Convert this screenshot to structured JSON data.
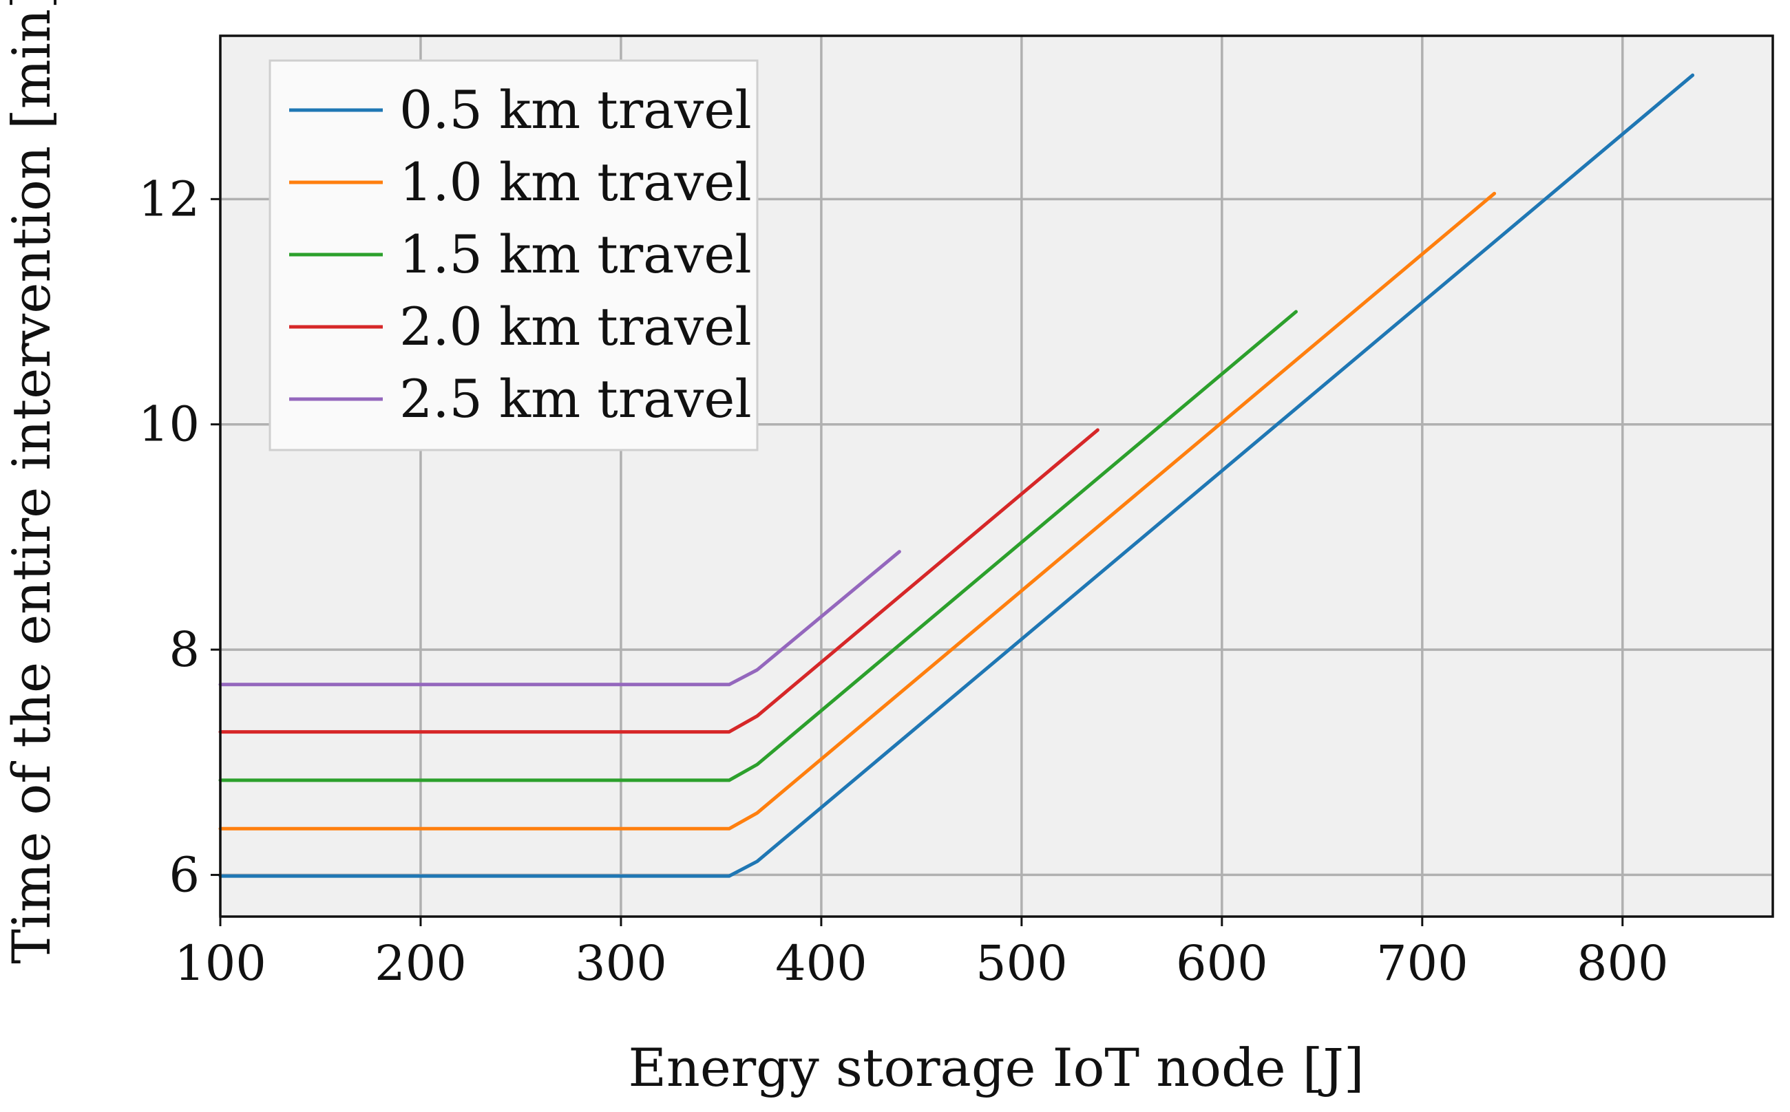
{
  "chart_data": {
    "type": "line",
    "title": "",
    "xlabel": "Energy storage IoT node [J]",
    "ylabel": "Time of the entire intervention [min]",
    "xlim": [
      100,
      875
    ],
    "ylim": [
      5.63,
      13.45
    ],
    "xticks": [
      100,
      200,
      300,
      400,
      500,
      600,
      700,
      800
    ],
    "yticks": [
      6,
      8,
      10,
      12
    ],
    "grid": true,
    "legend_position": "top-left",
    "series": [
      {
        "name": "0.5 km travel",
        "color": "#1f77b4",
        "points": [
          [
            100,
            5.99
          ],
          [
            354,
            5.99
          ],
          [
            368,
            6.12
          ],
          [
            835,
            13.1
          ]
        ]
      },
      {
        "name": "1.0 km travel",
        "color": "#ff7f0e",
        "points": [
          [
            100,
            6.41
          ],
          [
            354,
            6.41
          ],
          [
            368,
            6.55
          ],
          [
            736,
            12.05
          ]
        ]
      },
      {
        "name": "1.5 km travel",
        "color": "#2ca02c",
        "points": [
          [
            100,
            6.84
          ],
          [
            354,
            6.84
          ],
          [
            368,
            6.98
          ],
          [
            637,
            11.0
          ]
        ]
      },
      {
        "name": "2.0 km travel",
        "color": "#d62728",
        "points": [
          [
            100,
            7.27
          ],
          [
            354,
            7.27
          ],
          [
            368,
            7.41
          ],
          [
            538,
            9.95
          ]
        ]
      },
      {
        "name": "2.5 km travel",
        "color": "#9467bd",
        "points": [
          [
            100,
            7.69
          ],
          [
            354,
            7.69
          ],
          [
            368,
            7.82
          ],
          [
            439,
            8.87
          ]
        ]
      }
    ]
  }
}
